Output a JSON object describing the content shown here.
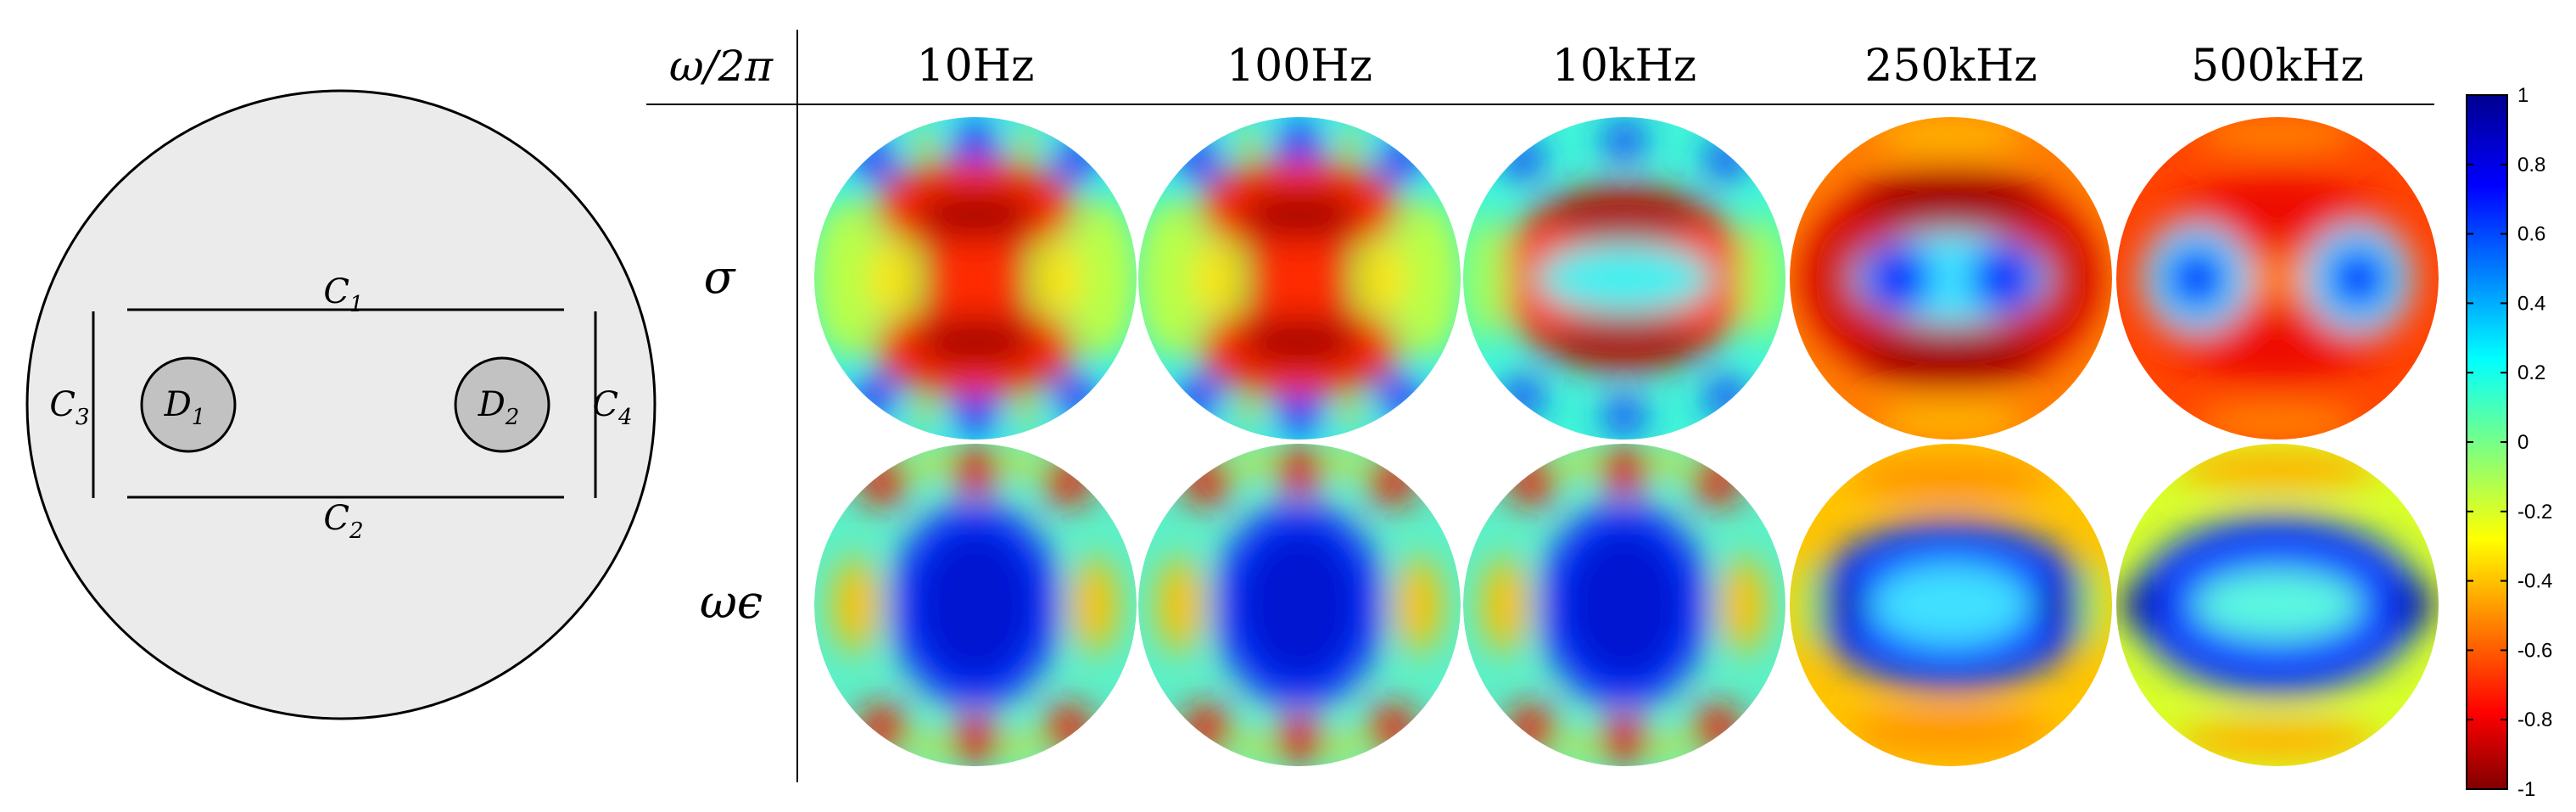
{
  "schematic": {
    "curves": [
      {
        "id": "C1",
        "base": "C",
        "sub": "1"
      },
      {
        "id": "C2",
        "base": "C",
        "sub": "2"
      },
      {
        "id": "C3",
        "base": "C",
        "sub": "3"
      },
      {
        "id": "C4",
        "base": "C",
        "sub": "4"
      }
    ],
    "domains": [
      {
        "id": "D1",
        "base": "D",
        "sub": "1"
      },
      {
        "id": "D2",
        "base": "D",
        "sub": "2"
      }
    ],
    "colors": {
      "outer_fill": "#ebebeb",
      "inclusion_fill": "#c2c2c2",
      "stroke": "#000000"
    }
  },
  "table": {
    "row_header_label": "ω/2π",
    "frequencies": [
      "10Hz",
      "100Hz",
      "10kHz",
      "250kHz",
      "500kHz"
    ],
    "rows": [
      {
        "label": "σ",
        "pattern_ids": [
          "sig_a",
          "sig_a",
          "sig_b",
          "sig_c",
          "sig_d"
        ]
      },
      {
        "label": "ωϵ",
        "pattern_ids": [
          "eps_a",
          "eps_a",
          "eps_a",
          "eps_b",
          "eps_c"
        ]
      }
    ]
  },
  "colorbar": {
    "colormap": "jet",
    "min": -1,
    "max": 1,
    "ticks": [
      "1",
      "0.8",
      "0.6",
      "0.4",
      "0.2",
      "0",
      "-0.2",
      "-0.4",
      "-0.6",
      "-0.8",
      "-1"
    ],
    "stops": [
      "#800000",
      "#ff0000",
      "#ffff00",
      "#00ffff",
      "#0000ff",
      "#00008f"
    ]
  },
  "icons": {
    "schematic": "disk-with-inclusions-diagram",
    "map": "disk-field-map"
  }
}
